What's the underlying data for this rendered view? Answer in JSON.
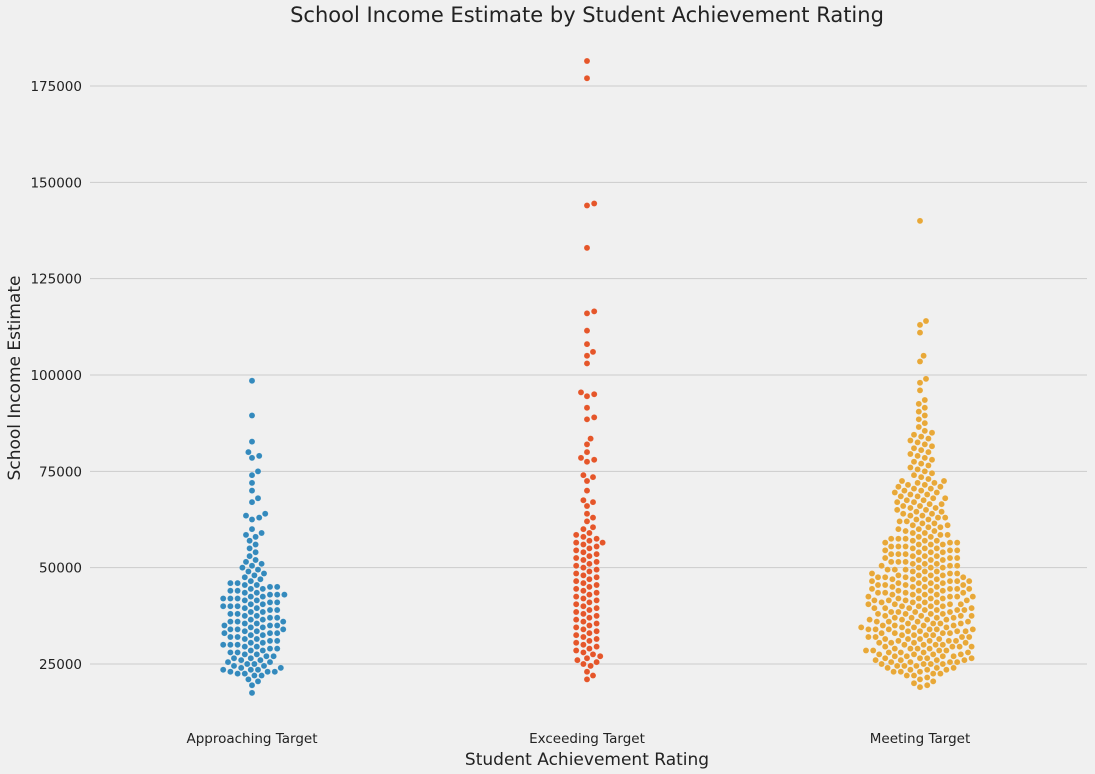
{
  "chart_data": {
    "type": "scatter",
    "subtype": "swarm",
    "title": "School Income Estimate by Student Achievement Rating",
    "xlabel": "Student Achievement Rating",
    "ylabel": "School Income Estimate",
    "categories": [
      "Approaching Target",
      "Exceeding Target",
      "Meeting Target"
    ],
    "yticks": [
      25000,
      50000,
      75000,
      100000,
      125000,
      150000,
      175000
    ],
    "ylim": [
      13000,
      189000
    ],
    "grid": "horizontal",
    "series": [
      {
        "category": "Approaching Target",
        "color": "#348abd",
        "values": [
          98500,
          89500,
          82700,
          80000,
          79000,
          78500,
          75000,
          74000,
          72000,
          70000,
          68000,
          67000,
          64000,
          63500,
          63000,
          62500,
          60000,
          59000,
          58500,
          58000,
          57000,
          56000,
          55000,
          54000,
          53000,
          52000,
          51500,
          51000,
          50500,
          50000,
          49500,
          49000,
          48500,
          48000,
          47500,
          47000,
          46500,
          46000,
          46000,
          45500,
          45500,
          45000,
          45000,
          44500,
          44500,
          44000,
          44000,
          43500,
          43500,
          43000,
          43000,
          43000,
          42500,
          42500,
          42000,
          42000,
          42000,
          41500,
          41500,
          41000,
          41000,
          40500,
          40500,
          40000,
          40000,
          40000,
          39500,
          39500,
          39000,
          39000,
          38500,
          38500,
          38000,
          38000,
          37500,
          37500,
          37000,
          37000,
          36500,
          36500,
          36000,
          36000,
          36000,
          35500,
          35500,
          35000,
          35000,
          35000,
          34500,
          34500,
          34000,
          34000,
          34000,
          33500,
          33500,
          33000,
          33000,
          33000,
          32500,
          32500,
          32000,
          32000,
          31500,
          31500,
          31000,
          31000,
          30500,
          30500,
          30000,
          30000,
          30000,
          29500,
          29500,
          29000,
          29000,
          28500,
          28500,
          28000,
          28000,
          27500,
          27500,
          27000,
          27000,
          26500,
          26500,
          26000,
          26000,
          25500,
          25500,
          25000,
          25000,
          24500,
          24500,
          24000,
          24000,
          23500,
          23500,
          23500,
          23000,
          23000,
          23000,
          22500,
          22500,
          22000,
          22000,
          21000,
          20500,
          19500,
          17500
        ]
      },
      {
        "category": "Exceeding Target",
        "color": "#e5562a",
        "values": [
          181500,
          177000,
          144500,
          144000,
          133000,
          116500,
          116000,
          111500,
          108000,
          106000,
          105000,
          103000,
          95500,
          95000,
          94500,
          91500,
          89000,
          88500,
          83500,
          82000,
          80000,
          78500,
          78000,
          77500,
          74000,
          73500,
          72500,
          70000,
          67500,
          67000,
          66000,
          64000,
          63000,
          62000,
          60500,
          60000,
          59000,
          58500,
          58000,
          57500,
          57000,
          56500,
          56500,
          56000,
          55500,
          55000,
          54500,
          54000,
          53500,
          53000,
          52500,
          52000,
          51500,
          51000,
          50500,
          50000,
          49500,
          49000,
          48500,
          48000,
          47500,
          47000,
          46500,
          46000,
          45500,
          45000,
          44500,
          44000,
          43500,
          43000,
          42500,
          42000,
          41500,
          41000,
          40500,
          40000,
          39500,
          39000,
          38500,
          38000,
          37500,
          37000,
          36500,
          36000,
          35500,
          35000,
          34500,
          34000,
          33500,
          33000,
          32500,
          32000,
          31500,
          31000,
          30500,
          30000,
          29500,
          29000,
          28500,
          28000,
          27500,
          27000,
          26500,
          26000,
          25500,
          25000,
          24500,
          23000,
          22000,
          21000
        ]
      },
      {
        "category": "Meeting Target",
        "color": "#e8a838",
        "values": [
          140000,
          114000,
          113000,
          111000,
          105000,
          103500,
          99000,
          98000,
          96000,
          93500,
          92500,
          91500,
          90500,
          89500,
          88500,
          87500,
          86500,
          85500,
          85000,
          84500,
          84000,
          83500,
          83000,
          82500,
          82000,
          81500,
          81000,
          80500,
          80000,
          79500,
          79000,
          78500,
          78000,
          77500,
          77000,
          76500,
          76000,
          75500,
          75000,
          74500,
          74000,
          73500,
          73000,
          72500,
          72500,
          72000,
          72000,
          71500,
          71500,
          71000,
          71000,
          70500,
          70500,
          70000,
          70000,
          69500,
          69500,
          69000,
          69000,
          68500,
          68500,
          68000,
          68000,
          67500,
          67500,
          67000,
          67000,
          66500,
          66500,
          66000,
          66000,
          65500,
          65500,
          65000,
          65000,
          64500,
          64500,
          64000,
          64000,
          63500,
          63500,
          63000,
          63000,
          62500,
          62500,
          62000,
          62000,
          61500,
          61500,
          61000,
          61000,
          60500,
          60500,
          60000,
          60000,
          59500,
          59500,
          59000,
          59000,
          58500,
          58500,
          58000,
          58000,
          57500,
          57500,
          57500,
          57000,
          57000,
          57000,
          56500,
          56500,
          56500,
          56000,
          56000,
          56000,
          55500,
          55500,
          55500,
          55000,
          55000,
          55000,
          54500,
          54500,
          54500,
          54000,
          54000,
          54000,
          53500,
          53500,
          53500,
          53000,
          53000,
          53000,
          52500,
          52500,
          52500,
          52000,
          52000,
          52000,
          51500,
          51500,
          51500,
          51000,
          51000,
          51000,
          50500,
          50500,
          50500,
          50000,
          50000,
          50000,
          49500,
          49500,
          49500,
          49000,
          49000,
          49000,
          48500,
          48500,
          48500,
          48000,
          48000,
          48000,
          48000,
          47500,
          47500,
          47500,
          47500,
          47000,
          47000,
          47000,
          47000,
          46500,
          46500,
          46500,
          46500,
          46000,
          46000,
          46000,
          46000,
          45500,
          45500,
          45500,
          45500,
          45000,
          45000,
          45000,
          45000,
          44500,
          44500,
          44500,
          44500,
          44000,
          44000,
          44000,
          44000,
          43500,
          43500,
          43500,
          43500,
          43000,
          43000,
          43000,
          43000,
          42500,
          42500,
          42500,
          42500,
          42000,
          42000,
          42000,
          42000,
          41500,
          41500,
          41500,
          41500,
          41000,
          41000,
          41000,
          41000,
          40500,
          40500,
          40500,
          40500,
          40000,
          40000,
          40000,
          40000,
          39500,
          39500,
          39500,
          39500,
          39000,
          39000,
          39000,
          39000,
          38500,
          38500,
          38500,
          38500,
          38000,
          38000,
          38000,
          38000,
          37500,
          37500,
          37500,
          37500,
          37000,
          37000,
          37000,
          37000,
          36500,
          36500,
          36500,
          36500,
          36000,
          36000,
          36000,
          36000,
          35500,
          35500,
          35500,
          35500,
          35000,
          35000,
          35000,
          35000,
          34500,
          34500,
          34500,
          34500,
          34000,
          34000,
          34000,
          34000,
          34000,
          34000,
          33500,
          33500,
          33500,
          33500,
          33000,
          33000,
          33000,
          33000,
          32500,
          32500,
          32500,
          32500,
          32000,
          32000,
          32000,
          32000,
          31500,
          31500,
          31500,
          31500,
          31000,
          31000,
          31000,
          31000,
          30500,
          30500,
          30500,
          30500,
          30000,
          30000,
          30000,
          30000,
          29500,
          29500,
          29500,
          29500,
          29000,
          29000,
          29000,
          29000,
          28500,
          28500,
          28500,
          28500,
          28000,
          28000,
          28000,
          28000,
          27500,
          27500,
          27500,
          27500,
          27000,
          27000,
          27000,
          27000,
          26500,
          26500,
          26500,
          26500,
          26000,
          26000,
          26000,
          26000,
          25500,
          25500,
          25500,
          25500,
          25000,
          25000,
          25000,
          25000,
          24500,
          24500,
          24500,
          24000,
          24000,
          24000,
          23500,
          23500,
          23500,
          23000,
          23000,
          23000,
          22500,
          22500,
          22000,
          22000,
          21500,
          21000,
          20500,
          20000,
          19500,
          19000
        ]
      }
    ]
  }
}
